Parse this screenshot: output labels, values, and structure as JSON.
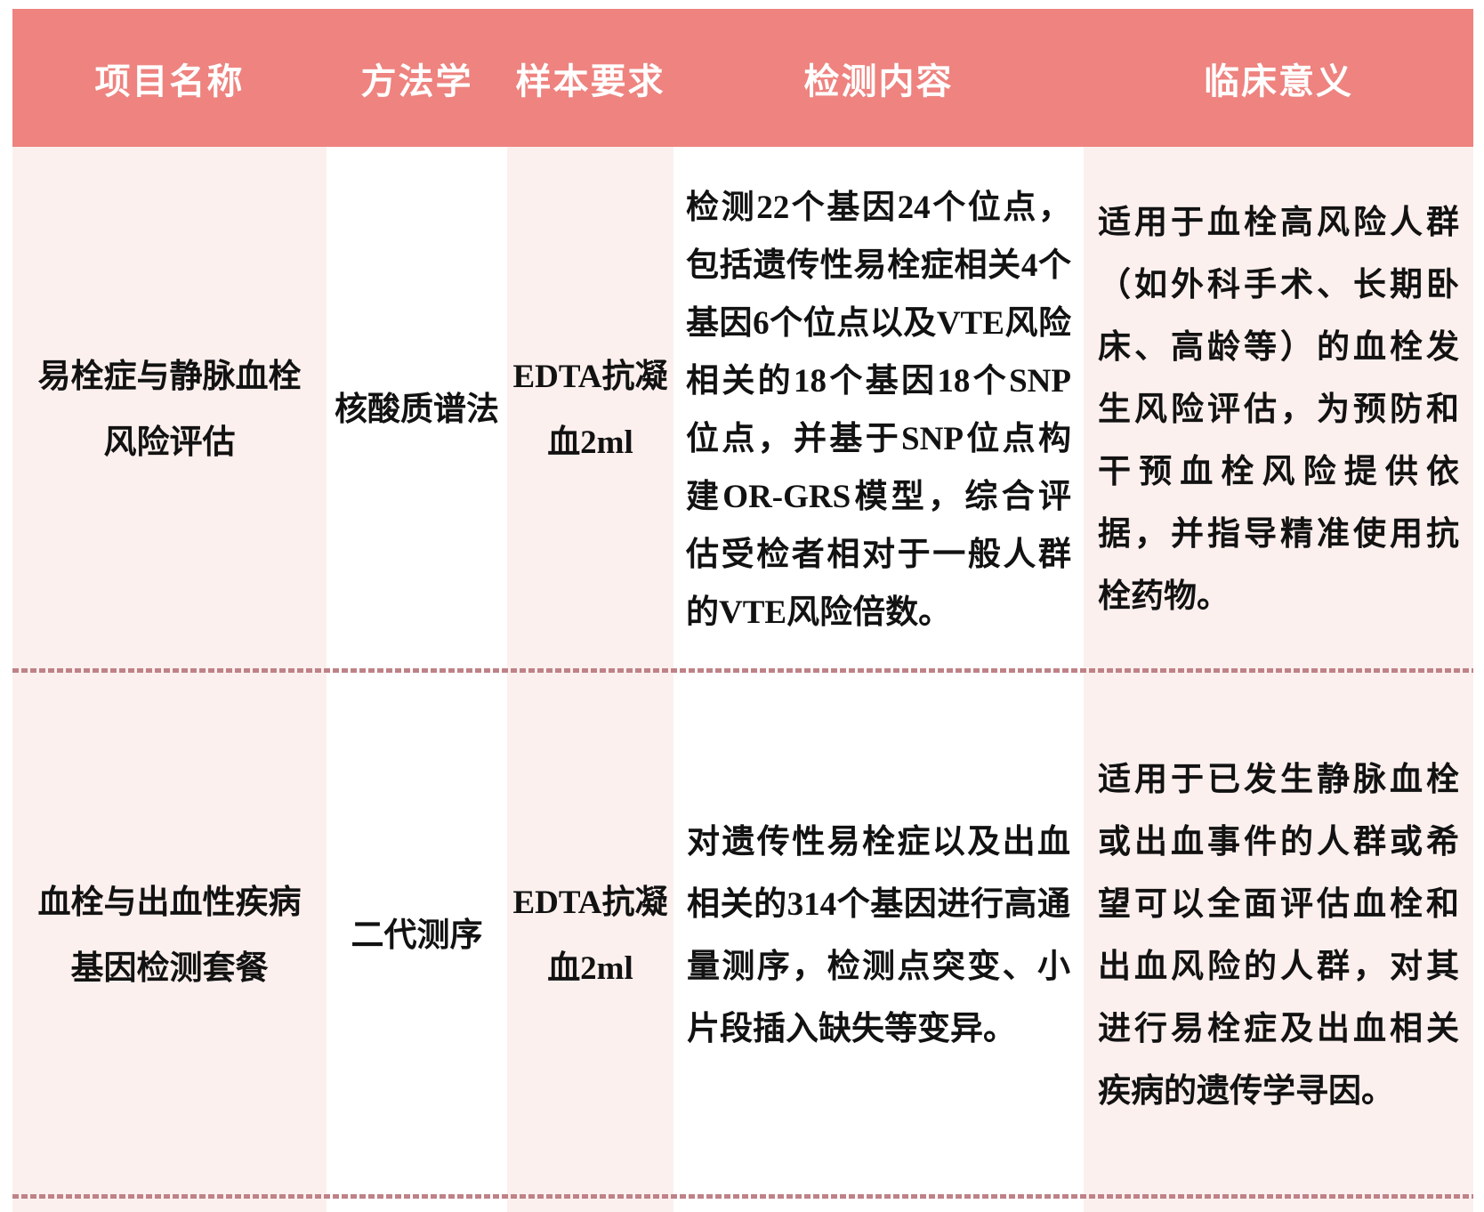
{
  "colors": {
    "header_bg": "#ee837f",
    "header_text": "#ffffff",
    "cell_pink": "#fbf0ee",
    "divider_dash": "#bf8287",
    "text": "#121212"
  },
  "table": {
    "columns": [
      {
        "label": "项目名称"
      },
      {
        "label": "方法学"
      },
      {
        "label": "样本要求"
      },
      {
        "label": "检测内容"
      },
      {
        "label": "临床意义"
      }
    ],
    "rows": [
      {
        "project": "易栓症与静脉血栓\n风险评估",
        "method": "核酸质谱法",
        "sample": "EDTA抗凝\n血2ml",
        "content": "检测22个基因24个位点，包括遗传性易栓症相关4个基因6个位点以及VTE风险相关的18个基因18个SNP位点，并基于SNP位点构建OR-GRS模型，综合评估受检者相对于一般人群的VTE风险倍数。",
        "significance": "适用于血栓高风险人群（如外科手术、长期卧床、高龄等）的血栓发生风险评估，为预防和干预血栓风险提供依据，并指导精准使用抗栓药物。"
      },
      {
        "project": "血栓与出血性疾病\n基因检测套餐",
        "method": "二代测序",
        "sample": "EDTA抗凝\n血2ml",
        "content": "对遗传性易栓症以及出血相关的314个基因进行高通量测序，检测点突变、小片段插入缺失等变异。",
        "significance": "适用于已发生静脉血栓或出血事件的人群或希望可以全面评估血栓和出血风险的人群，对其进行易栓症及出血相关疾病的遗传学寻因。"
      }
    ]
  }
}
